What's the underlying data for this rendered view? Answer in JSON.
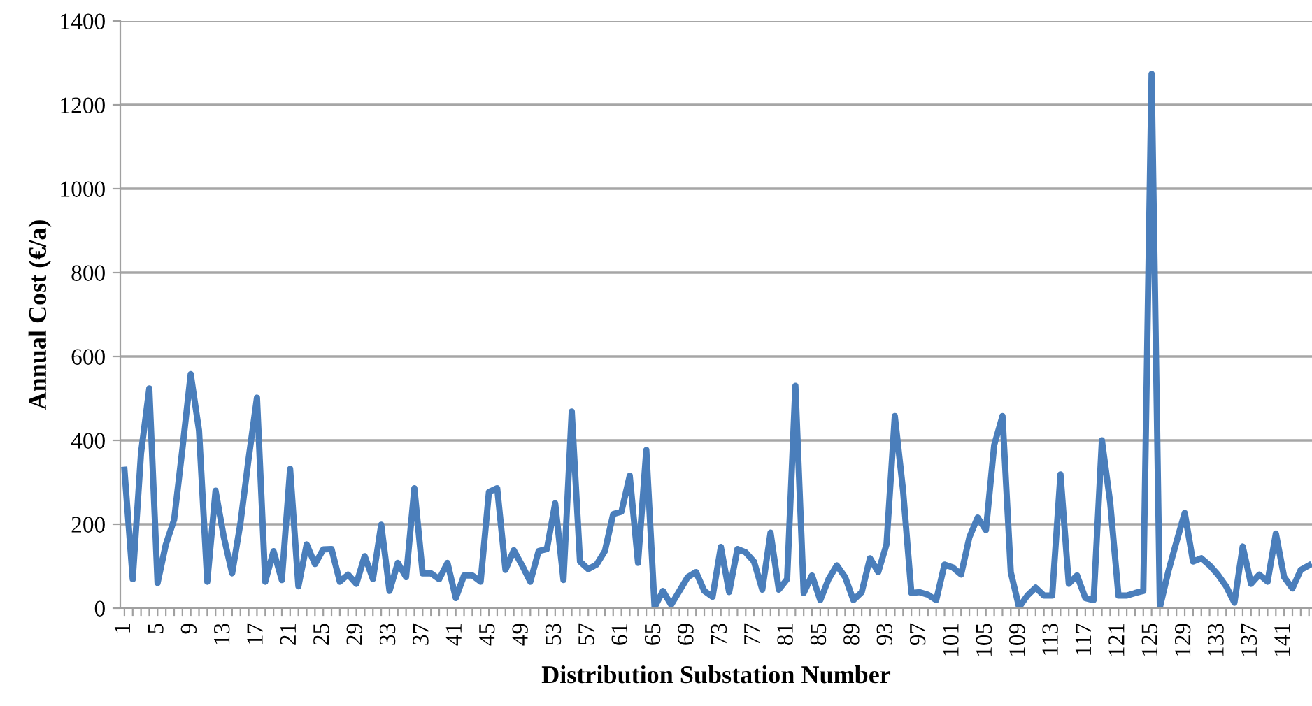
{
  "chart_data": {
    "type": "line",
    "xlabel": "Distribution Substation Number",
    "ylabel": "Annual Cost (€/a)",
    "categories": [
      "1",
      null,
      null,
      null,
      "5",
      null,
      null,
      null,
      "9",
      null,
      null,
      null,
      "13",
      null,
      null,
      null,
      "17",
      null,
      null,
      null,
      "21",
      null,
      null,
      null,
      "25",
      null,
      null,
      null,
      "29",
      null,
      null,
      null,
      "33",
      null,
      null,
      null,
      "37",
      null,
      null,
      null,
      "41",
      null,
      null,
      null,
      "45",
      null,
      null,
      null,
      "49",
      null,
      null,
      null,
      "53",
      null,
      null,
      null,
      "57",
      null,
      null,
      null,
      "61",
      null,
      null,
      null,
      "65",
      null,
      null,
      null,
      "69",
      null,
      null,
      null,
      "73",
      null,
      null,
      null,
      "77",
      null,
      null,
      null,
      "81",
      null,
      null,
      null,
      "85",
      null,
      null,
      null,
      "89",
      null,
      null,
      null,
      "93",
      null,
      null,
      null,
      "97",
      null,
      null,
      null,
      "101",
      null,
      null,
      null,
      "105",
      null,
      null,
      null,
      "109",
      null,
      null,
      null,
      "113",
      null,
      null,
      null,
      "117",
      null,
      null,
      null,
      "121",
      null,
      null,
      null,
      "125",
      null,
      null,
      null,
      "129",
      null,
      null,
      null,
      "133",
      null,
      null,
      null,
      "137",
      null,
      null,
      null,
      "141",
      null,
      null,
      null
    ],
    "series": [
      {
        "color": "#4a7ebb",
        "values": [
          330,
          69,
          369,
          524,
          60,
          152,
          211,
          380,
          558,
          424,
          63,
          280,
          169,
          83,
          202,
          358,
          502,
          63,
          136,
          67,
          332,
          52,
          152,
          105,
          140,
          141,
          63,
          80,
          58,
          124,
          69,
          199,
          41,
          108,
          74,
          286,
          83,
          83,
          69,
          108,
          24,
          78,
          78,
          63,
          277,
          286,
          91,
          138,
          102,
          63,
          136,
          141,
          250,
          67,
          469,
          111,
          93,
          104,
          136,
          224,
          230,
          316,
          108,
          377,
          2,
          41,
          8,
          41,
          74,
          86,
          41,
          27,
          146,
          38,
          141,
          133,
          111,
          44,
          180,
          44,
          69,
          530,
          36,
          78,
          19,
          69,
          102,
          74,
          19,
          38,
          119,
          86,
          152,
          458,
          280,
          36,
          38,
          32,
          19,
          104,
          97,
          80,
          169,
          216,
          186,
          389,
          458,
          86,
          2,
          30,
          49,
          30,
          30,
          319,
          58,
          78,
          24,
          19,
          400,
          252,
          30,
          30,
          36,
          41,
          1274,
          2,
          86,
          158,
          227,
          111,
          119,
          102,
          80,
          52,
          13,
          147,
          58,
          80,
          63,
          178,
          74,
          47,
          91,
          102
        ]
      }
    ],
    "ylim": [
      0,
      1400
    ],
    "yticks": [
      0,
      200,
      400,
      600,
      800,
      1000,
      1200,
      1400
    ],
    "grid": "y",
    "marker": "none",
    "line_style": "solid"
  }
}
